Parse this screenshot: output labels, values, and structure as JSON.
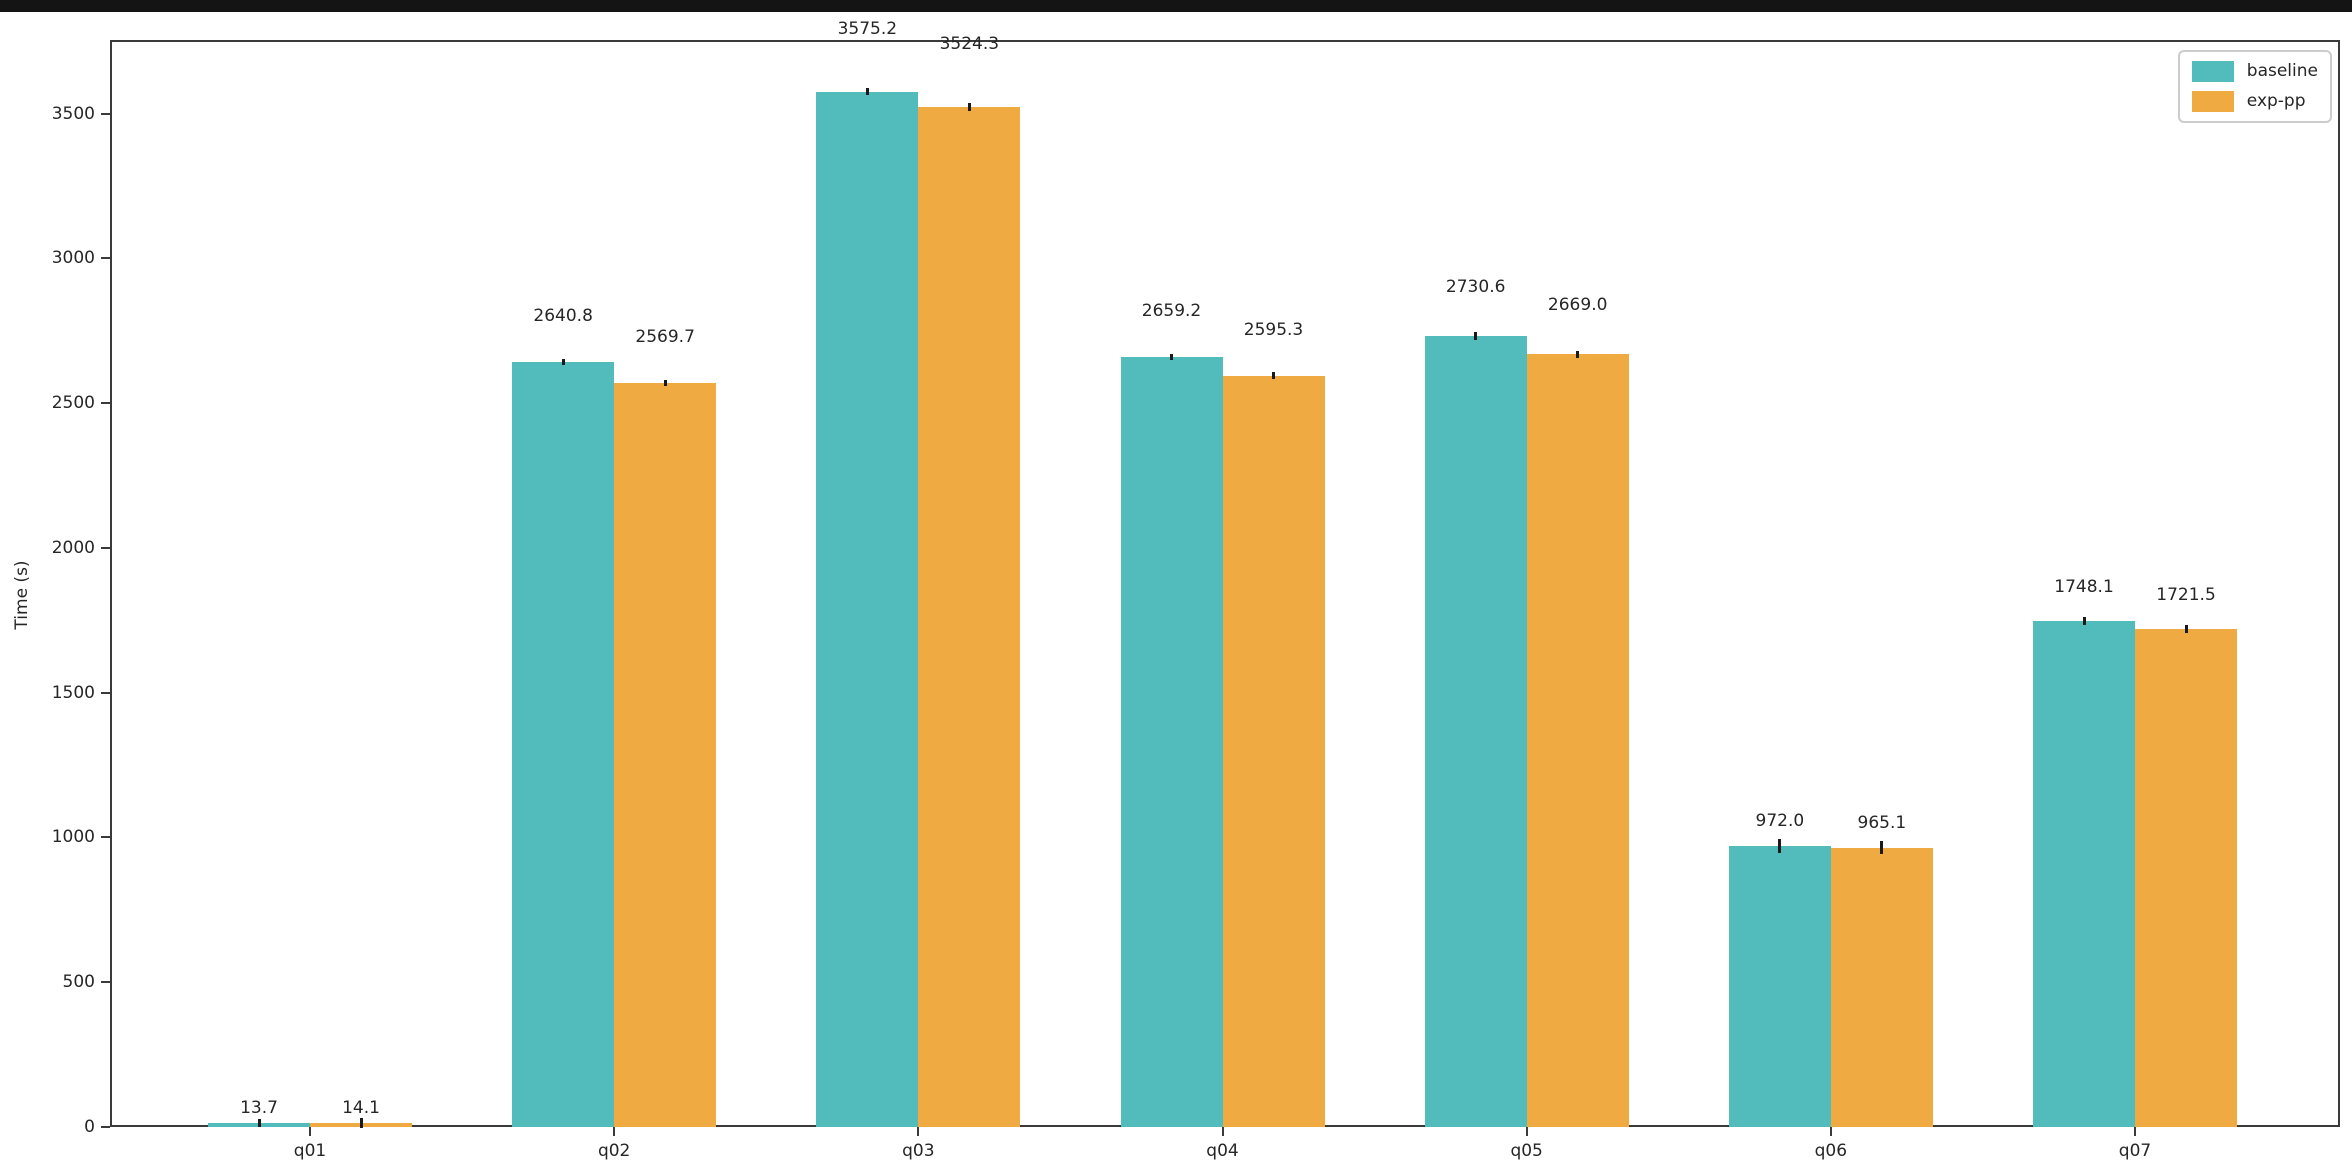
{
  "window": {
    "top_strip_color": "#141414",
    "background_color": "#ffffff"
  },
  "chart_data": {
    "type": "bar",
    "title": "",
    "xlabel": "",
    "ylabel": "Time (s)",
    "categories": [
      "q01",
      "q02",
      "q03",
      "q04",
      "q05",
      "q06",
      "q07"
    ],
    "series": [
      {
        "name": "baseline",
        "color": "#52BCBC",
        "values": [
          13.7,
          2640.8,
          3575.2,
          2659.2,
          2730.6,
          972.0,
          1748.1
        ]
      },
      {
        "name": "exp-pp",
        "color": "#F0AA42",
        "values": [
          14.1,
          2569.7,
          3524.3,
          2595.3,
          2669.0,
          965.1,
          1721.5
        ]
      }
    ],
    "bar_value_labels": [
      [
        "13.7",
        "2640.8",
        "3575.2",
        "2659.2",
        "2730.6",
        "972.0",
        "1748.1"
      ],
      [
        "14.1",
        "2569.7",
        "3524.3",
        "2595.3",
        "2669.0",
        "965.1",
        "1721.5"
      ]
    ],
    "yticks": [
      0,
      500,
      1000,
      1500,
      2000,
      2500,
      3000,
      3500
    ],
    "ylim": [
      0,
      3754
    ],
    "grid": false,
    "error_bars": true,
    "legend_position": "upper right",
    "axis_color": "#3a3a3a",
    "text_color": "#262626"
  }
}
